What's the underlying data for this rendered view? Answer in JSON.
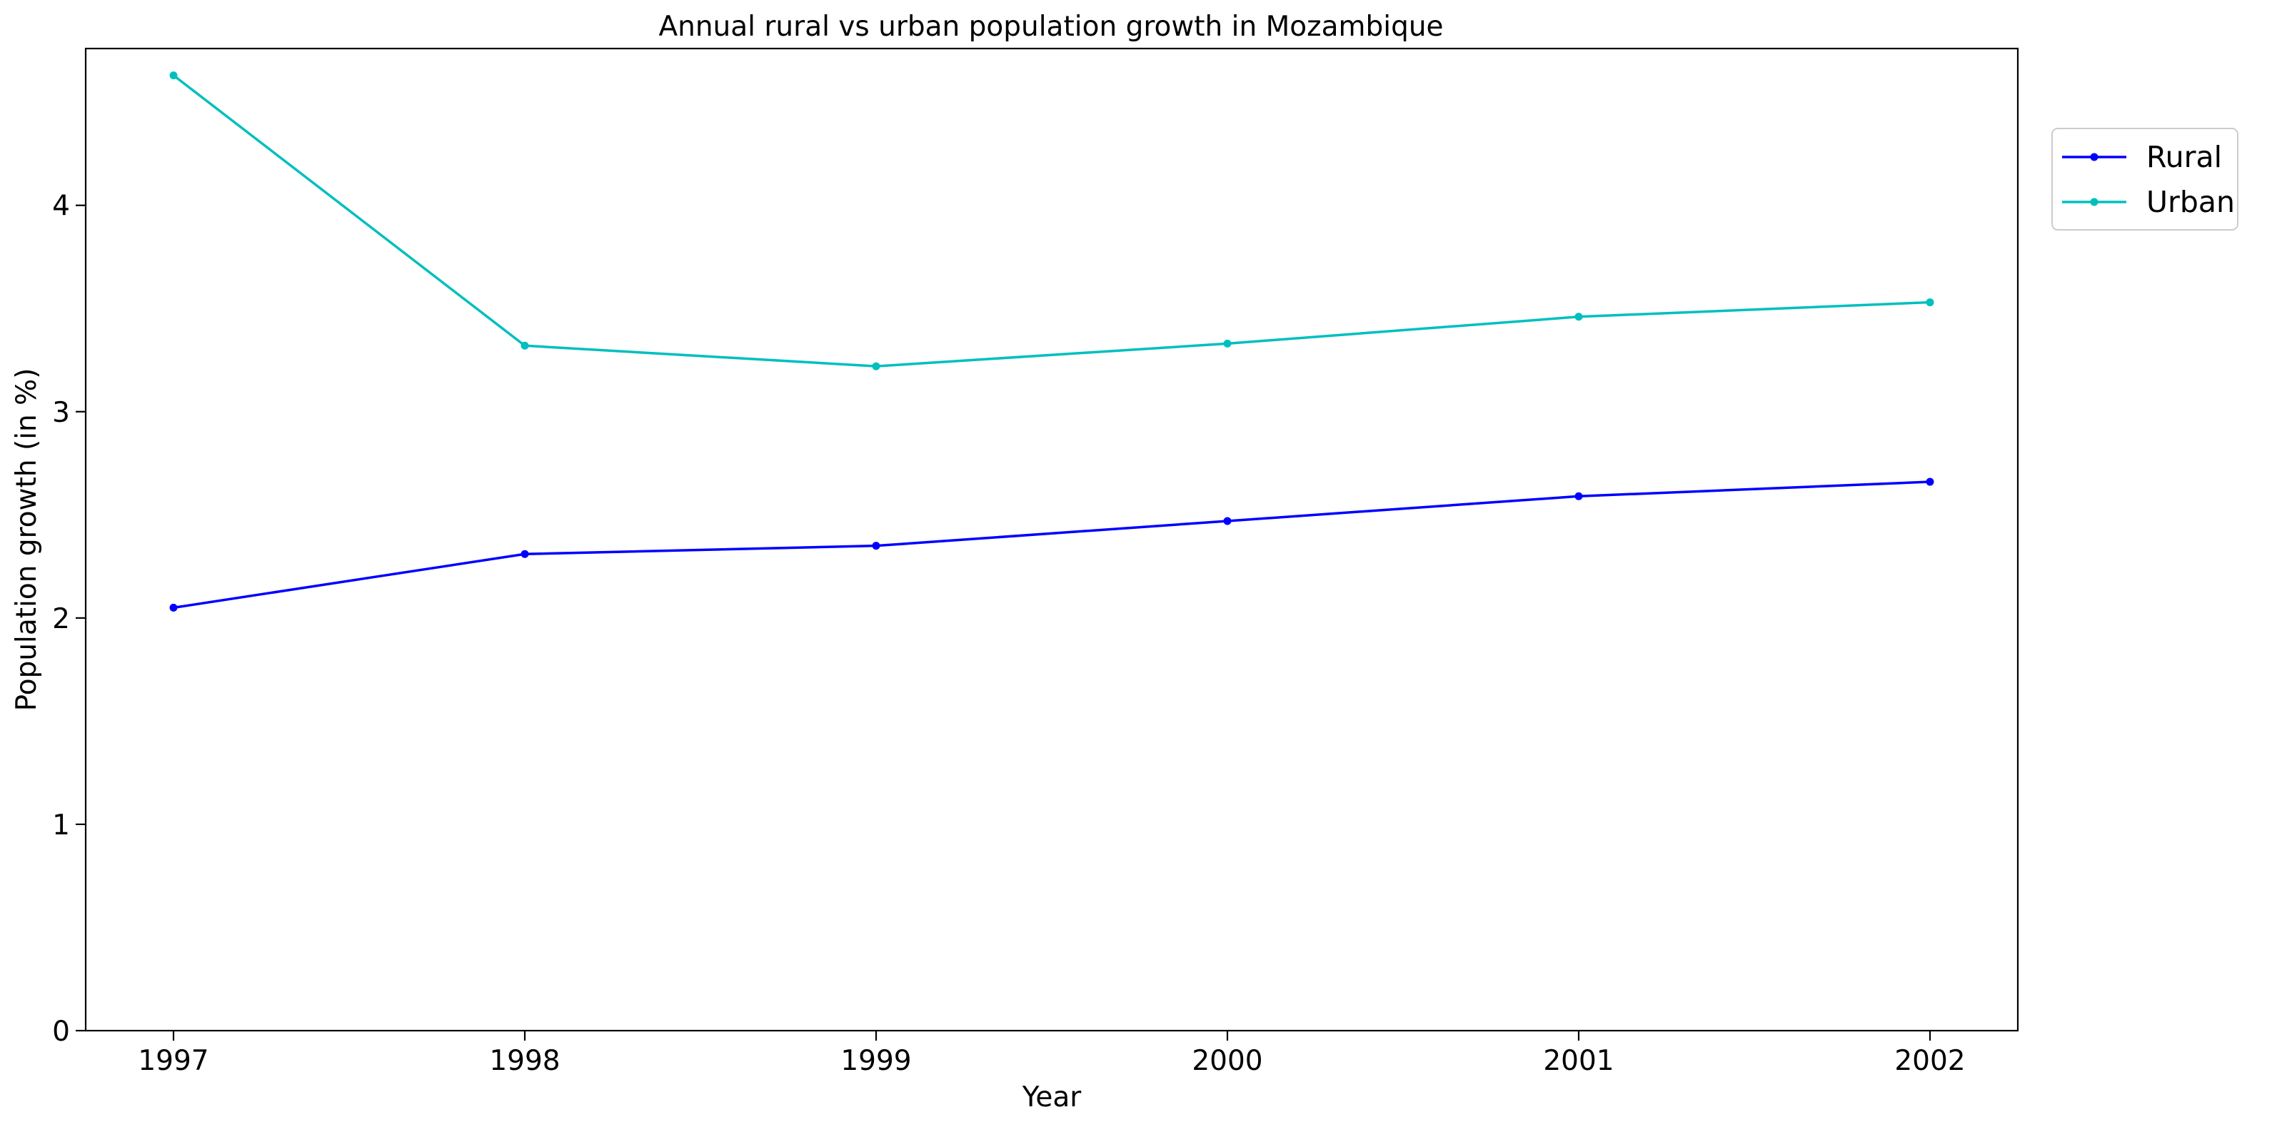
{
  "chart_data": {
    "type": "line",
    "title": "Annual rural vs urban population growth in Mozambique",
    "xlabel": "Year",
    "ylabel": "Population growth (in %)",
    "x": [
      1997,
      1998,
      1999,
      2000,
      2001,
      2002
    ],
    "xlim": [
      1996.75,
      2002.25
    ],
    "ylim": [
      0,
      4.76
    ],
    "xticks": [
      "1997",
      "1998",
      "1999",
      "2000",
      "2001",
      "2002"
    ],
    "yticks": [
      "0",
      "1",
      "2",
      "3",
      "4"
    ],
    "grid": false,
    "legend_position": "outside-top-right",
    "series": [
      {
        "name": "Rural",
        "color": "#0000ff",
        "values": [
          2.05,
          2.31,
          2.35,
          2.47,
          2.59,
          2.66
        ]
      },
      {
        "name": "Urban",
        "color": "#00bfbf",
        "values": [
          4.63,
          3.32,
          3.22,
          3.33,
          3.46,
          3.53
        ]
      }
    ]
  }
}
